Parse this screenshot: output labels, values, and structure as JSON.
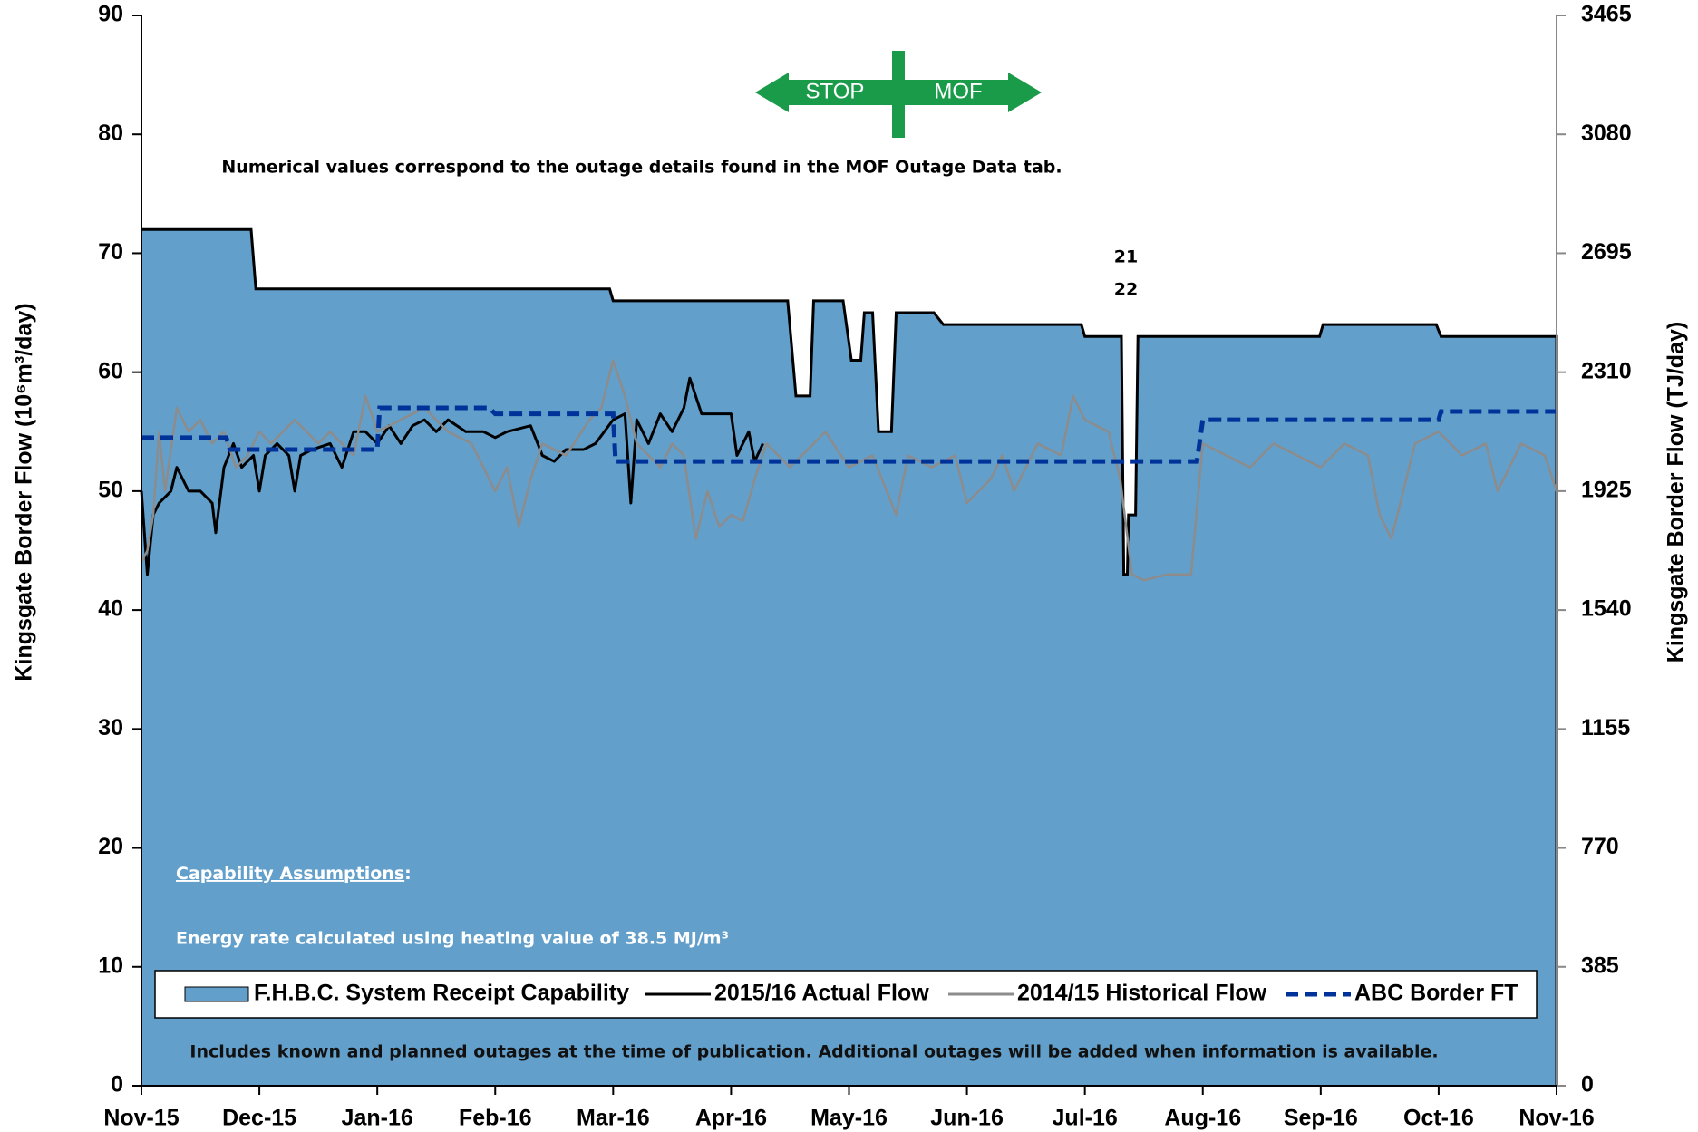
{
  "chart_data": {
    "type": "line",
    "y_label": "Kingsgate  Border Flow (10⁶m³/day)",
    "y2_label": "Kingsgate Border Flow (TJ/day)",
    "annotations": [
      "Numerical values correspond to the outage details found in the MOF Outage Data tab.",
      "21",
      "22",
      "Capability Assumptions",
      ":",
      "Energy rate calculated using heating value of 38.5 MJ/m³",
      "Includes known and planned outages at the time of publication.  Additional outages will be added when information is available.",
      "STOP",
      "MOF"
    ],
    "xlim": [
      0,
      12
    ],
    "xticks": [
      {
        "value": 0,
        "label": "Nov-15"
      },
      {
        "value": 1,
        "label": "Dec-15"
      },
      {
        "value": 2,
        "label": "Jan-16"
      },
      {
        "value": 3,
        "label": "Feb-16"
      },
      {
        "value": 4,
        "label": "Mar-16"
      },
      {
        "value": 5,
        "label": "Apr-16"
      },
      {
        "value": 6,
        "label": "May-16"
      },
      {
        "value": 7,
        "label": "Jun-16"
      },
      {
        "value": 8,
        "label": "Jul-16"
      },
      {
        "value": 9,
        "label": "Aug-16"
      },
      {
        "value": 10,
        "label": "Sep-16"
      },
      {
        "value": 11,
        "label": "Oct-16"
      },
      {
        "value": 12,
        "label": "Nov-16"
      }
    ],
    "ylim": [
      0,
      90
    ],
    "yticks": [
      0,
      10,
      20,
      30,
      40,
      50,
      60,
      70,
      80,
      90
    ],
    "y2lim": [
      0,
      3465
    ],
    "y2ticks": [
      0,
      385,
      770,
      1155,
      1540,
      1925,
      2310,
      2695,
      3080,
      3465
    ],
    "series": [
      {
        "name": "F.H.B.C. System Receipt Capability",
        "kind": "area",
        "color": "#639fcb",
        "x": [
          0,
          0.93,
          0.97,
          3.97,
          4.0,
          5.48,
          5.55,
          5.67,
          5.7,
          5.95,
          6.02,
          6.1,
          6.13,
          6.2,
          6.25,
          6.36,
          6.4,
          6.72,
          6.8,
          7.97,
          8.0,
          8.31,
          8.33,
          8.36,
          8.37,
          8.43,
          8.45,
          9.99,
          10.02,
          10.98,
          11.02,
          12
        ],
        "values": [
          72,
          72,
          67,
          67,
          66,
          66,
          58,
          58,
          66,
          66,
          61,
          61,
          65,
          65,
          55,
          55,
          65,
          65,
          64,
          64,
          63,
          63,
          43,
          43,
          48,
          48,
          63,
          63,
          64,
          64,
          63,
          63
        ]
      },
      {
        "name": "2015/16 Actual Flow",
        "kind": "line",
        "color": "#000000",
        "x": [
          0,
          0.05,
          0.1,
          0.15,
          0.25,
          0.3,
          0.4,
          0.5,
          0.6,
          0.63,
          0.7,
          0.78,
          0.85,
          0.95,
          1.0,
          1.05,
          1.15,
          1.25,
          1.3,
          1.35,
          1.45,
          1.6,
          1.7,
          1.8,
          1.9,
          2.0,
          2.1,
          2.2,
          2.3,
          2.4,
          2.5,
          2.6,
          2.75,
          2.9,
          3.0,
          3.1,
          3.3,
          3.4,
          3.5,
          3.6,
          3.75,
          3.85,
          4.0,
          4.1,
          4.15,
          4.2,
          4.3,
          4.4,
          4.5,
          4.6,
          4.65,
          4.75,
          4.9,
          5.0,
          5.05,
          5.15,
          5.2,
          5.27
        ],
        "values": [
          50,
          43,
          48,
          49,
          50,
          52,
          50,
          50,
          49,
          46.5,
          52,
          54,
          52,
          53,
          50,
          53,
          54,
          53,
          50,
          53,
          53.5,
          54,
          52,
          55,
          55,
          54,
          55.5,
          54,
          55.5,
          56,
          55,
          56,
          55,
          55,
          54.5,
          55,
          55.5,
          53,
          52.5,
          53.5,
          53.5,
          54,
          56,
          56.5,
          49,
          56,
          54,
          56.5,
          55,
          57,
          59.5,
          56.5,
          56.5,
          56.5,
          53,
          55,
          52.5,
          54
        ]
      },
      {
        "name": "2014/15 Historical Flow",
        "kind": "line",
        "color": "#8c8c8c",
        "x": [
          0,
          0.05,
          0.1,
          0.15,
          0.2,
          0.3,
          0.4,
          0.5,
          0.6,
          0.7,
          0.8,
          0.9,
          1.0,
          1.1,
          1.2,
          1.3,
          1.4,
          1.5,
          1.6,
          1.8,
          1.9,
          2.0,
          2.2,
          2.4,
          2.6,
          2.8,
          3.0,
          3.1,
          3.2,
          3.3,
          3.4,
          3.6,
          3.8,
          3.9,
          4.0,
          4.1,
          4.2,
          4.4,
          4.5,
          4.6,
          4.7,
          4.8,
          4.9,
          5.0,
          5.1,
          5.2,
          5.3,
          5.5,
          5.6,
          5.8,
          6.0,
          6.2,
          6.4,
          6.5,
          6.7,
          6.9,
          7.0,
          7.2,
          7.3,
          7.4,
          7.6,
          7.8,
          7.9,
          8.0,
          8.2,
          8.3,
          8.35,
          8.4,
          8.5,
          8.7,
          8.9,
          9.0,
          9.2,
          9.4,
          9.6,
          9.8,
          10.0,
          10.2,
          10.4,
          10.5,
          10.6,
          10.8,
          11.0,
          11.2,
          11.4,
          11.5,
          11.7,
          11.9,
          12.0
        ],
        "values": [
          44,
          45,
          48,
          55,
          50,
          57,
          55,
          56,
          54,
          55,
          52,
          53,
          55,
          54,
          55,
          56,
          55,
          54,
          55,
          53,
          58,
          55,
          56,
          57,
          55,
          54,
          50,
          52,
          47,
          51,
          54,
          53,
          56,
          57,
          61,
          58,
          54,
          52,
          54,
          53,
          46,
          50,
          47,
          48,
          47.5,
          51,
          54,
          52,
          53,
          55,
          52,
          53,
          48,
          53,
          52,
          53,
          49,
          51,
          53,
          50,
          54,
          53,
          58,
          56,
          55,
          51,
          47,
          43,
          42.5,
          43,
          43,
          54,
          53,
          52,
          54,
          53,
          52,
          54,
          53,
          48,
          46,
          54,
          55,
          53,
          54,
          50,
          54,
          53,
          50
        ]
      },
      {
        "name": "ABC Border  FT",
        "kind": "dashed",
        "color": "#003399",
        "x": [
          0,
          0.72,
          0.75,
          2.0,
          2.02,
          2.95,
          3.0,
          4.0,
          4.02,
          8.95,
          9.0,
          11.0,
          11.02,
          12
        ],
        "values": [
          54.5,
          54.5,
          53.5,
          53.5,
          57,
          57,
          56.5,
          56.5,
          52.5,
          52.5,
          56,
          56,
          56.7,
          56.7
        ]
      }
    ]
  }
}
